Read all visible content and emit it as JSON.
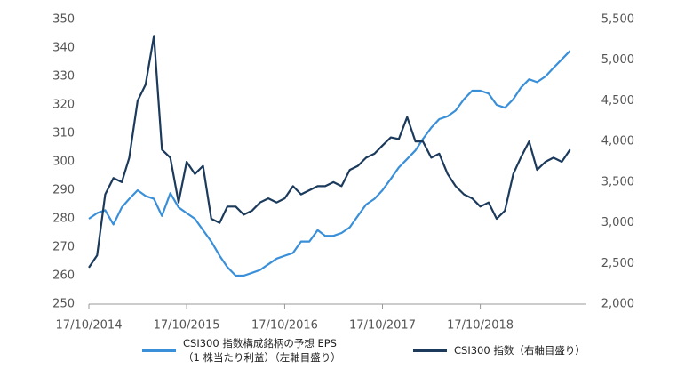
{
  "chart_data": {
    "type": "line",
    "x": [
      "17/10/2014",
      "17/11/2014",
      "17/12/2014",
      "17/01/2015",
      "17/02/2015",
      "17/03/2015",
      "17/04/2015",
      "17/05/2015",
      "17/06/2015",
      "17/07/2015",
      "17/08/2015",
      "17/09/2015",
      "17/10/2015",
      "17/11/2015",
      "17/12/2015",
      "17/01/2016",
      "17/02/2016",
      "17/03/2016",
      "17/04/2016",
      "17/05/2016",
      "17/06/2016",
      "17/07/2016",
      "17/08/2016",
      "17/09/2016",
      "17/10/2016",
      "17/11/2016",
      "17/12/2016",
      "17/01/2017",
      "17/02/2017",
      "17/03/2017",
      "17/04/2017",
      "17/05/2017",
      "17/06/2017",
      "17/07/2017",
      "17/08/2017",
      "17/09/2017",
      "17/10/2017",
      "17/11/2017",
      "17/12/2017",
      "17/01/2018",
      "17/02/2018",
      "17/03/2018",
      "17/04/2018",
      "17/05/2018",
      "17/06/2018",
      "17/07/2018",
      "17/08/2018",
      "17/09/2018",
      "17/10/2018",
      "17/11/2018",
      "17/12/2018",
      "17/01/2019",
      "17/02/2019",
      "17/03/2019",
      "17/04/2019",
      "17/05/2019",
      "17/06/2019",
      "17/07/2019",
      "17/08/2019",
      "17/09/2019"
    ],
    "series": [
      {
        "name": "CSI300 指数構成銘柄の予想 EPS\n（1 株当たり利益）（左軸目盛り）",
        "color": "#3a8fd9",
        "axis": "y",
        "values": [
          280,
          282,
          283,
          278,
          284,
          287,
          290,
          288,
          287,
          281,
          289,
          284,
          282,
          280,
          276,
          272,
          267,
          263,
          260,
          260,
          261,
          262,
          264,
          266,
          267,
          268,
          272,
          272,
          276,
          274,
          274,
          275,
          277,
          281,
          285,
          287,
          290,
          294,
          298,
          301,
          304,
          308,
          312,
          315,
          316,
          318,
          322,
          325,
          325,
          324,
          320,
          319,
          322,
          326,
          329,
          328,
          330,
          333,
          336,
          339
        ]
      },
      {
        "name": "CSI300 指数（右軸目盛り）",
        "color": "#1b3a5c",
        "axis": "y2",
        "values": [
          2450,
          2600,
          3350,
          3550,
          3500,
          3800,
          4500,
          4700,
          5300,
          3900,
          3800,
          3250,
          3750,
          3600,
          3700,
          3050,
          3000,
          3200,
          3200,
          3100,
          3150,
          3250,
          3300,
          3250,
          3300,
          3450,
          3350,
          3400,
          3450,
          3450,
          3500,
          3450,
          3650,
          3700,
          3800,
          3850,
          3950,
          4050,
          4030,
          4300,
          4000,
          4000,
          3800,
          3850,
          3600,
          3450,
          3350,
          3300,
          3200,
          3250,
          3050,
          3150,
          3600,
          3800,
          4000,
          3650,
          3750,
          3800,
          3750,
          3900
        ]
      }
    ],
    "xlim": [
      "17/10/2014",
      "17/11/2019"
    ],
    "xticks": [
      "17/10/2014",
      "17/10/2015",
      "17/10/2016",
      "17/10/2017",
      "17/10/2018"
    ],
    "ylim": [
      250,
      350
    ],
    "yticks": [
      250,
      260,
      270,
      280,
      290,
      300,
      310,
      320,
      330,
      340,
      350
    ],
    "y2lim": [
      2000,
      5500
    ],
    "y2ticks": [
      {
        "value": 2000,
        "label": "2,000"
      },
      {
        "value": 2500,
        "label": "2,500"
      },
      {
        "value": 3000,
        "label": "3,000"
      },
      {
        "value": 3500,
        "label": "3,500"
      },
      {
        "value": 4000,
        "label": "4,000"
      },
      {
        "value": 4500,
        "label": "4,500"
      },
      {
        "value": 5000,
        "label": "5,000"
      },
      {
        "value": 5500,
        "label": "5,500"
      }
    ],
    "grid": false
  }
}
